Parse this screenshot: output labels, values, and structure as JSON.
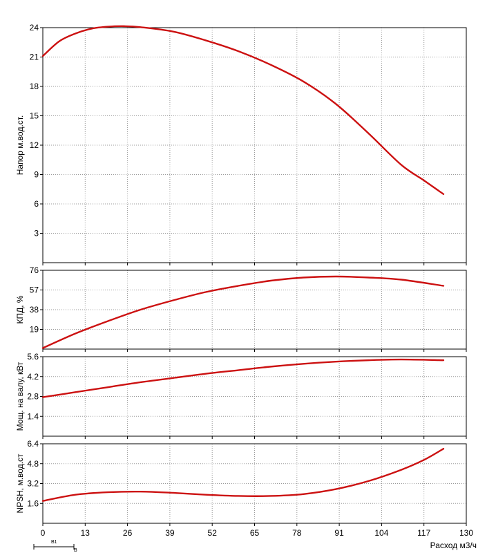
{
  "chart_data": [
    {
      "type": "line",
      "ylabel": "Напор м.вод.ст.",
      "xlim": [
        0,
        130
      ],
      "ylim": [
        0,
        24
      ],
      "yticks": [
        3,
        6,
        9,
        12,
        15,
        18,
        21,
        24
      ],
      "color": "#cc1111",
      "series": [
        {
          "x": [
            0,
            5,
            10,
            15,
            20,
            25,
            30,
            40,
            50,
            60,
            70,
            80,
            90,
            100,
            110,
            117,
            123
          ],
          "y": [
            21.1,
            22.6,
            23.4,
            23.9,
            24.1,
            24.15,
            24.05,
            23.6,
            22.7,
            21.6,
            20.2,
            18.5,
            16.2,
            13.2,
            10.0,
            8.4,
            7.0
          ]
        }
      ]
    },
    {
      "type": "line",
      "ylabel": "КПД, %",
      "xlim": [
        0,
        130
      ],
      "ylim": [
        0,
        76
      ],
      "yticks": [
        19,
        38,
        57,
        76
      ],
      "color": "#cc1111",
      "series": [
        {
          "x": [
            0,
            10,
            20,
            30,
            40,
            50,
            60,
            70,
            80,
            90,
            100,
            110,
            123
          ],
          "y": [
            1,
            15,
            27,
            38,
            47,
            55,
            61,
            66,
            69,
            70,
            69,
            67,
            61
          ]
        }
      ]
    },
    {
      "type": "line",
      "ylabel": "Мощ. на валу, кВт",
      "xlim": [
        0,
        130
      ],
      "ylim": [
        0,
        5.6
      ],
      "yticks": [
        1.4,
        2.8,
        4.2,
        5.6
      ],
      "color": "#cc1111",
      "series": [
        {
          "x": [
            0,
            10,
            20,
            30,
            40,
            50,
            60,
            70,
            80,
            90,
            100,
            110,
            123
          ],
          "y": [
            2.75,
            3.1,
            3.45,
            3.8,
            4.1,
            4.4,
            4.65,
            4.9,
            5.1,
            5.25,
            5.35,
            5.4,
            5.35
          ]
        }
      ]
    },
    {
      "type": "line",
      "ylabel": "NPSH, м.вод.ст",
      "xlabel": "Расход м3/ч",
      "xlim": [
        0,
        130
      ],
      "xticks": [
        0,
        13,
        26,
        39,
        52,
        65,
        78,
        91,
        104,
        117,
        130
      ],
      "ylim": [
        0,
        6.4
      ],
      "yticks": [
        1.6,
        3.2,
        4.8,
        6.4
      ],
      "color": "#cc1111",
      "series": [
        {
          "x": [
            0,
            10,
            20,
            30,
            40,
            50,
            60,
            70,
            80,
            90,
            100,
            110,
            117,
            123
          ],
          "y": [
            1.8,
            2.3,
            2.5,
            2.55,
            2.45,
            2.3,
            2.2,
            2.2,
            2.35,
            2.75,
            3.4,
            4.3,
            5.1,
            6.0
          ]
        }
      ]
    }
  ],
  "legend": {
    "items": [
      "B1",
      "B"
    ]
  }
}
